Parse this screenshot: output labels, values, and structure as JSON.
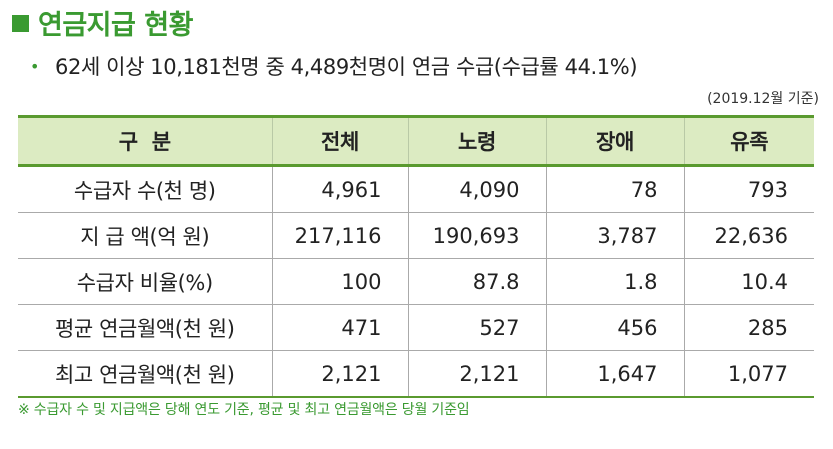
{
  "title": "연금지급 현황",
  "summary": "62세 이상 10,181천명 중 4,489천명이 연금 수급(수급률 44.1%)",
  "reference_date": "(2019.12월 기준)",
  "table": {
    "headers": [
      "구  분",
      "전체",
      "노령",
      "장애",
      "유족"
    ],
    "rows": [
      {
        "label": "수급자 수(천 명)",
        "values": [
          "4,961",
          "4,090",
          "78",
          "793"
        ]
      },
      {
        "label": "지 급 액(억 원)",
        "values": [
          "217,116",
          "190,693",
          "3,787",
          "22,636"
        ]
      },
      {
        "label": "수급자 비율(%)",
        "values": [
          "100",
          "87.8",
          "1.8",
          "10.4"
        ]
      },
      {
        "label": "평균 연금월액(천 원)",
        "values": [
          "471",
          "527",
          "456",
          "285"
        ]
      },
      {
        "label": "최고 연금월액(천 원)",
        "values": [
          "2,121",
          "2,121",
          "1,647",
          "1,077"
        ]
      }
    ]
  },
  "footnote": "※ 수급자 수 및 지급액은 당해 연도 기준, 평균 및 최고 연금월액은 당월 기준임",
  "colors": {
    "accent": "#3a9a31",
    "header_bg": "#dcebc2",
    "rule": "#5a9a2f"
  }
}
